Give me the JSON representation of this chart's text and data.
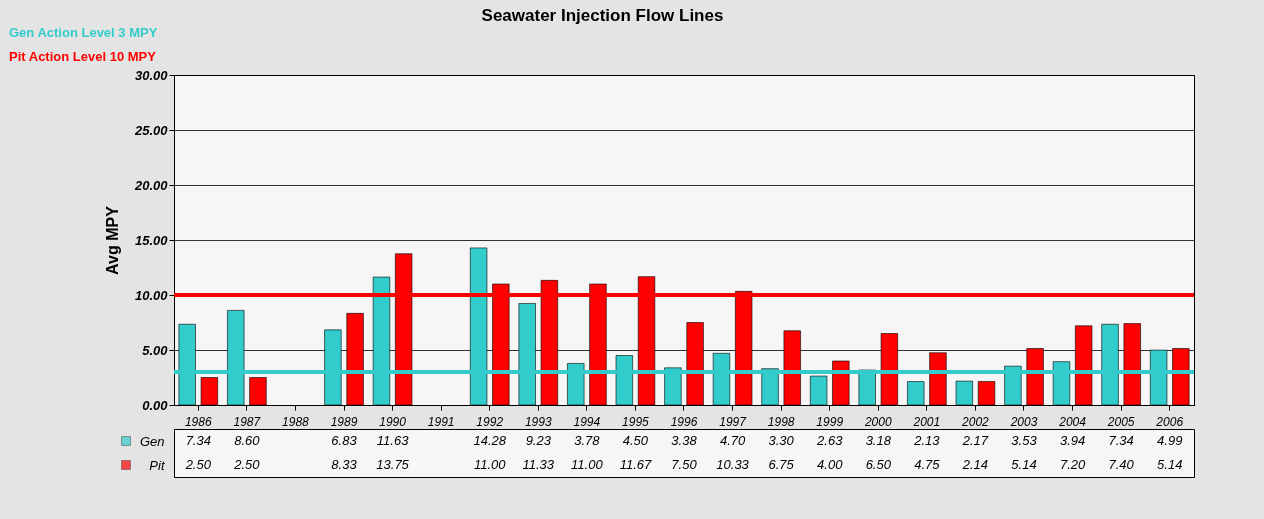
{
  "chart_data": {
    "type": "bar",
    "title": "Seawater Injection Flow Lines",
    "ylabel": "Avg MPY",
    "categories": [
      "1986",
      "1987",
      "1988",
      "1989",
      "1990",
      "1991",
      "1992",
      "1993",
      "1994",
      "1995",
      "1996",
      "1997",
      "1998",
      "1999",
      "2000",
      "2001",
      "2002",
      "2003",
      "2004",
      "2005",
      "2006"
    ],
    "series": [
      {
        "name": "Gen",
        "color": "#33cccc",
        "values": [
          7.34,
          8.6,
          null,
          6.83,
          11.63,
          null,
          14.28,
          9.23,
          3.78,
          4.5,
          3.38,
          4.7,
          3.3,
          2.63,
          3.18,
          2.13,
          2.17,
          3.53,
          3.94,
          7.34,
          4.99
        ],
        "value_labels": [
          "7.34",
          "8.60",
          null,
          "6.83",
          "11.63",
          null,
          "14.28",
          "9.23",
          "3.78",
          "4.50",
          "3.38",
          "4.70",
          "3.30",
          "2.63",
          "3.18",
          "2.13",
          "2.17",
          "3.53",
          "3.94",
          "7.34",
          "4.99"
        ]
      },
      {
        "name": "Pit",
        "color": "#ff0000",
        "values": [
          2.5,
          2.5,
          null,
          8.33,
          13.75,
          null,
          11,
          11.33,
          11,
          11.67,
          7.5,
          10.33,
          6.75,
          4,
          6.5,
          4.75,
          2.14,
          5.14,
          7.2,
          7.4,
          5.14
        ],
        "value_labels": [
          "2.50",
          "2.50",
          null,
          "8.33",
          "13.75",
          null,
          "11.00",
          "11.33",
          "11.00",
          "11.67",
          "7.50",
          "10.33",
          "6.75",
          "4.00",
          "6.50",
          "4.75",
          "2.14",
          "5.14",
          "7.20",
          "7.40",
          "5.14"
        ]
      }
    ],
    "ylim": [
      0,
      30
    ],
    "yticks": [
      {
        "value": 0,
        "label": "0.00"
      },
      {
        "value": 5,
        "label": "5.00"
      },
      {
        "value": 10,
        "label": "10.00"
      },
      {
        "value": 15,
        "label": "15.00"
      },
      {
        "value": 20,
        "label": "20.00"
      },
      {
        "value": 25,
        "label": "25.00"
      },
      {
        "value": 30,
        "label": "30.00"
      }
    ],
    "grid": "y",
    "legend": "bottom left",
    "ref_lines": [
      {
        "axis": "y",
        "value": 3,
        "label": "Gen Action Level 3 MPY",
        "color": "#33cccc"
      },
      {
        "axis": "y",
        "value": 10,
        "label": "Pit Action Level 10 MPY",
        "color": "#ff0000"
      }
    ]
  }
}
